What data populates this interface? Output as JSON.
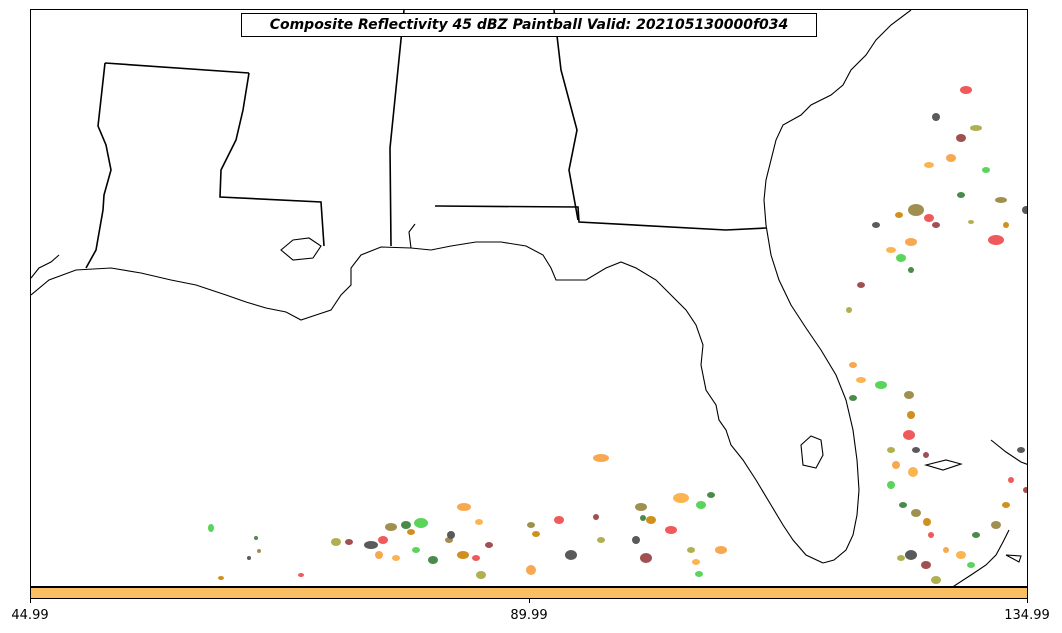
{
  "title": "Composite Reflectivity 45 dBZ Paintball Valid: 202105130000f034",
  "colorbar": {
    "color": "#fbbf63",
    "ticks": [
      "44.99",
      "89.99",
      "134.99"
    ]
  },
  "member_colors": [
    "#f05a5a",
    "#5a5a5a",
    "#a05050",
    "#b0b050",
    "#f8a850",
    "#fbb450",
    "#5ad45a",
    "#4a8a4a",
    "#a09050",
    "#d09020"
  ]
}
